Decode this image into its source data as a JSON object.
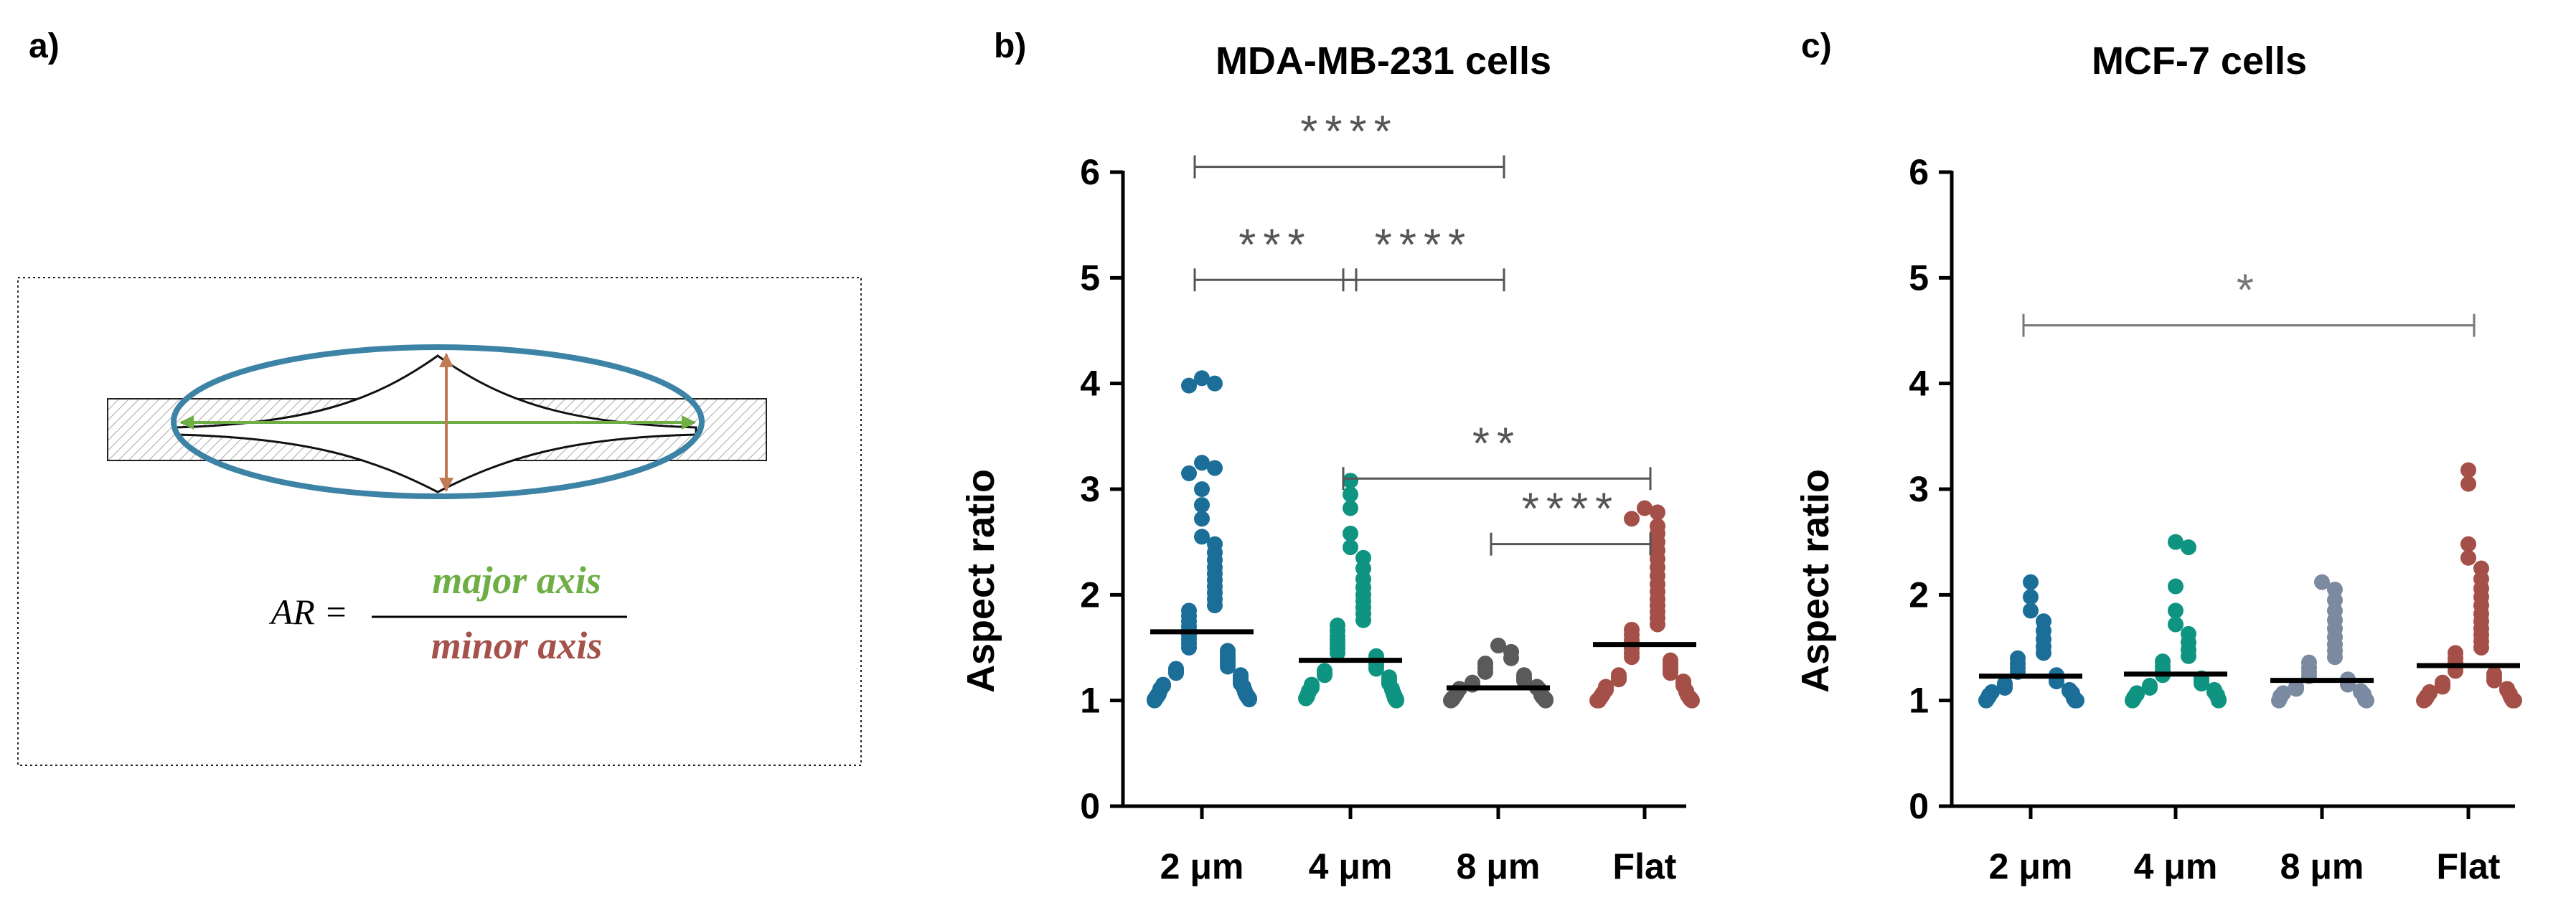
{
  "panel_a": {
    "label": "a)",
    "formula_lhs": "AR =",
    "numerator": "major axis",
    "denominator": "minor axis",
    "colors": {
      "major": "#6fae45",
      "minor": "#a5524a",
      "ellipse": "#3d83a6",
      "arrow_minor": "#c07a55"
    }
  },
  "chart_data": [
    {
      "type": "scatter",
      "panel_label": "b)",
      "title": "MDA-MB-231 cells",
      "xlabel": "",
      "ylabel": "Aspect ratio",
      "ylim": [
        0,
        6
      ],
      "yticks": [
        "0",
        "1",
        "2",
        "3",
        "4",
        "5",
        "6"
      ],
      "categories": [
        "2 μm",
        "4 μm",
        "8 μm",
        "Flat"
      ],
      "colors": [
        "#1b6e97",
        "#0f9482",
        "#5a5a5a",
        "#a44f48"
      ],
      "means": [
        1.65,
        1.38,
        1.12,
        1.53
      ],
      "max_values": [
        4.05,
        3.08,
        1.52,
        2.82
      ],
      "series": [
        {
          "name": "2 μm",
          "values": [
            4.05,
            4.0,
            3.98,
            3.25,
            3.2,
            3.15,
            3.0,
            2.85,
            2.72,
            2.55,
            2.48,
            2.4,
            2.33,
            2.26,
            2.2,
            2.14,
            2.08,
            2.02,
            1.96,
            1.9,
            1.85,
            1.8,
            1.75,
            1.7,
            1.66,
            1.62,
            1.58,
            1.54,
            1.5,
            1.47,
            1.44,
            1.41,
            1.38,
            1.35,
            1.32,
            1.3,
            1.28,
            1.26,
            1.24,
            1.22,
            1.2,
            1.18,
            1.16,
            1.15,
            1.14,
            1.13,
            1.12,
            1.11,
            1.1,
            1.09,
            1.08,
            1.07,
            1.06,
            1.05,
            1.05,
            1.04,
            1.04,
            1.03,
            1.03,
            1.02,
            1.02,
            1.01,
            1.01,
            1.0
          ]
        },
        {
          "name": "4 μm",
          "values": [
            3.08,
            2.95,
            2.82,
            2.58,
            2.45,
            2.35,
            2.25,
            2.15,
            2.07,
            2.0,
            1.94,
            1.88,
            1.82,
            1.76,
            1.71,
            1.66,
            1.61,
            1.57,
            1.53,
            1.49,
            1.45,
            1.42,
            1.39,
            1.36,
            1.33,
            1.3,
            1.28,
            1.26,
            1.24,
            1.22,
            1.2,
            1.18,
            1.16,
            1.15,
            1.14,
            1.12,
            1.11,
            1.1,
            1.09,
            1.08,
            1.07,
            1.06,
            1.05,
            1.04,
            1.04,
            1.03,
            1.02,
            1.02,
            1.01,
            1.0
          ]
        },
        {
          "name": "8 μm",
          "values": [
            1.52,
            1.46,
            1.4,
            1.35,
            1.31,
            1.27,
            1.24,
            1.21,
            1.19,
            1.17,
            1.15,
            1.13,
            1.12,
            1.11,
            1.1,
            1.09,
            1.08,
            1.07,
            1.06,
            1.05,
            1.05,
            1.04,
            1.03,
            1.03,
            1.02,
            1.02,
            1.01,
            1.01,
            1.0,
            1.0
          ]
        },
        {
          "name": "Flat",
          "values": [
            2.82,
            2.78,
            2.72,
            2.65,
            2.58,
            2.5,
            2.42,
            2.34,
            2.26,
            2.18,
            2.1,
            2.03,
            1.96,
            1.9,
            1.84,
            1.78,
            1.72,
            1.67,
            1.62,
            1.57,
            1.53,
            1.49,
            1.45,
            1.41,
            1.38,
            1.35,
            1.32,
            1.29,
            1.26,
            1.24,
            1.22,
            1.2,
            1.18,
            1.16,
            1.14,
            1.13,
            1.12,
            1.1,
            1.09,
            1.08,
            1.07,
            1.06,
            1.05,
            1.05,
            1.04,
            1.03,
            1.03,
            1.02,
            1.02,
            1.01,
            1.01,
            1.0,
            1.0,
            1.0
          ]
        }
      ],
      "significance": [
        {
          "from": 0,
          "to": 2,
          "y": 6.05,
          "label": "****"
        },
        {
          "from": 0,
          "to": 1,
          "y": 4.98,
          "label": "***"
        },
        {
          "from": 1,
          "to": 2,
          "y": 4.98,
          "label": "****"
        },
        {
          "from": 1,
          "to": 3,
          "y": 3.1,
          "label": "**"
        },
        {
          "from": 2,
          "to": 3,
          "y": 2.48,
          "label": "****"
        }
      ]
    },
    {
      "type": "scatter",
      "panel_label": "c)",
      "title": "MCF-7 cells",
      "xlabel": "",
      "ylabel": "Aspect ratio",
      "ylim": [
        0,
        6
      ],
      "yticks": [
        "0",
        "1",
        "2",
        "3",
        "4",
        "5",
        "6"
      ],
      "categories": [
        "2 μm",
        "4 μm",
        "8 μm",
        "Flat"
      ],
      "colors": [
        "#1b6e97",
        "#0f9482",
        "#7b8aa0",
        "#a44f48"
      ],
      "means": [
        1.23,
        1.25,
        1.19,
        1.33
      ],
      "max_values": [
        2.12,
        2.5,
        2.12,
        3.18
      ],
      "series": [
        {
          "name": "2 μm",
          "values": [
            2.12,
            1.98,
            1.85,
            1.75,
            1.66,
            1.58,
            1.51,
            1.45,
            1.4,
            1.35,
            1.31,
            1.27,
            1.24,
            1.21,
            1.18,
            1.16,
            1.14,
            1.12,
            1.1,
            1.09,
            1.08,
            1.07,
            1.06,
            1.05,
            1.04,
            1.03,
            1.02,
            1.02,
            1.01,
            1.0,
            1.0,
            1.0
          ]
        },
        {
          "name": "4 μm",
          "values": [
            2.5,
            2.45,
            2.08,
            1.85,
            1.72,
            1.63,
            1.55,
            1.48,
            1.42,
            1.37,
            1.32,
            1.28,
            1.24,
            1.21,
            1.18,
            1.16,
            1.14,
            1.12,
            1.1,
            1.08,
            1.07,
            1.06,
            1.05,
            1.04,
            1.03,
            1.02,
            1.01,
            1.0,
            1.0
          ]
        },
        {
          "name": "8 μm",
          "values": [
            2.12,
            2.05,
            1.95,
            1.85,
            1.76,
            1.68,
            1.6,
            1.53,
            1.47,
            1.41,
            1.36,
            1.31,
            1.27,
            1.23,
            1.2,
            1.17,
            1.15,
            1.13,
            1.11,
            1.09,
            1.08,
            1.07,
            1.06,
            1.05,
            1.04,
            1.03,
            1.02,
            1.01,
            1.0,
            1.0
          ]
        },
        {
          "name": "Flat",
          "values": [
            3.18,
            3.05,
            2.48,
            2.35,
            2.25,
            2.15,
            2.06,
            1.98,
            1.9,
            1.82,
            1.75,
            1.68,
            1.62,
            1.56,
            1.5,
            1.45,
            1.4,
            1.36,
            1.32,
            1.28,
            1.25,
            1.22,
            1.19,
            1.17,
            1.15,
            1.13,
            1.11,
            1.1,
            1.08,
            1.07,
            1.06,
            1.05,
            1.04,
            1.03,
            1.02,
            1.02,
            1.01,
            1.0,
            1.0,
            1.0
          ]
        }
      ],
      "significance": [
        {
          "from": 0,
          "to": 3,
          "y": 4.55,
          "label": "*"
        }
      ]
    }
  ]
}
